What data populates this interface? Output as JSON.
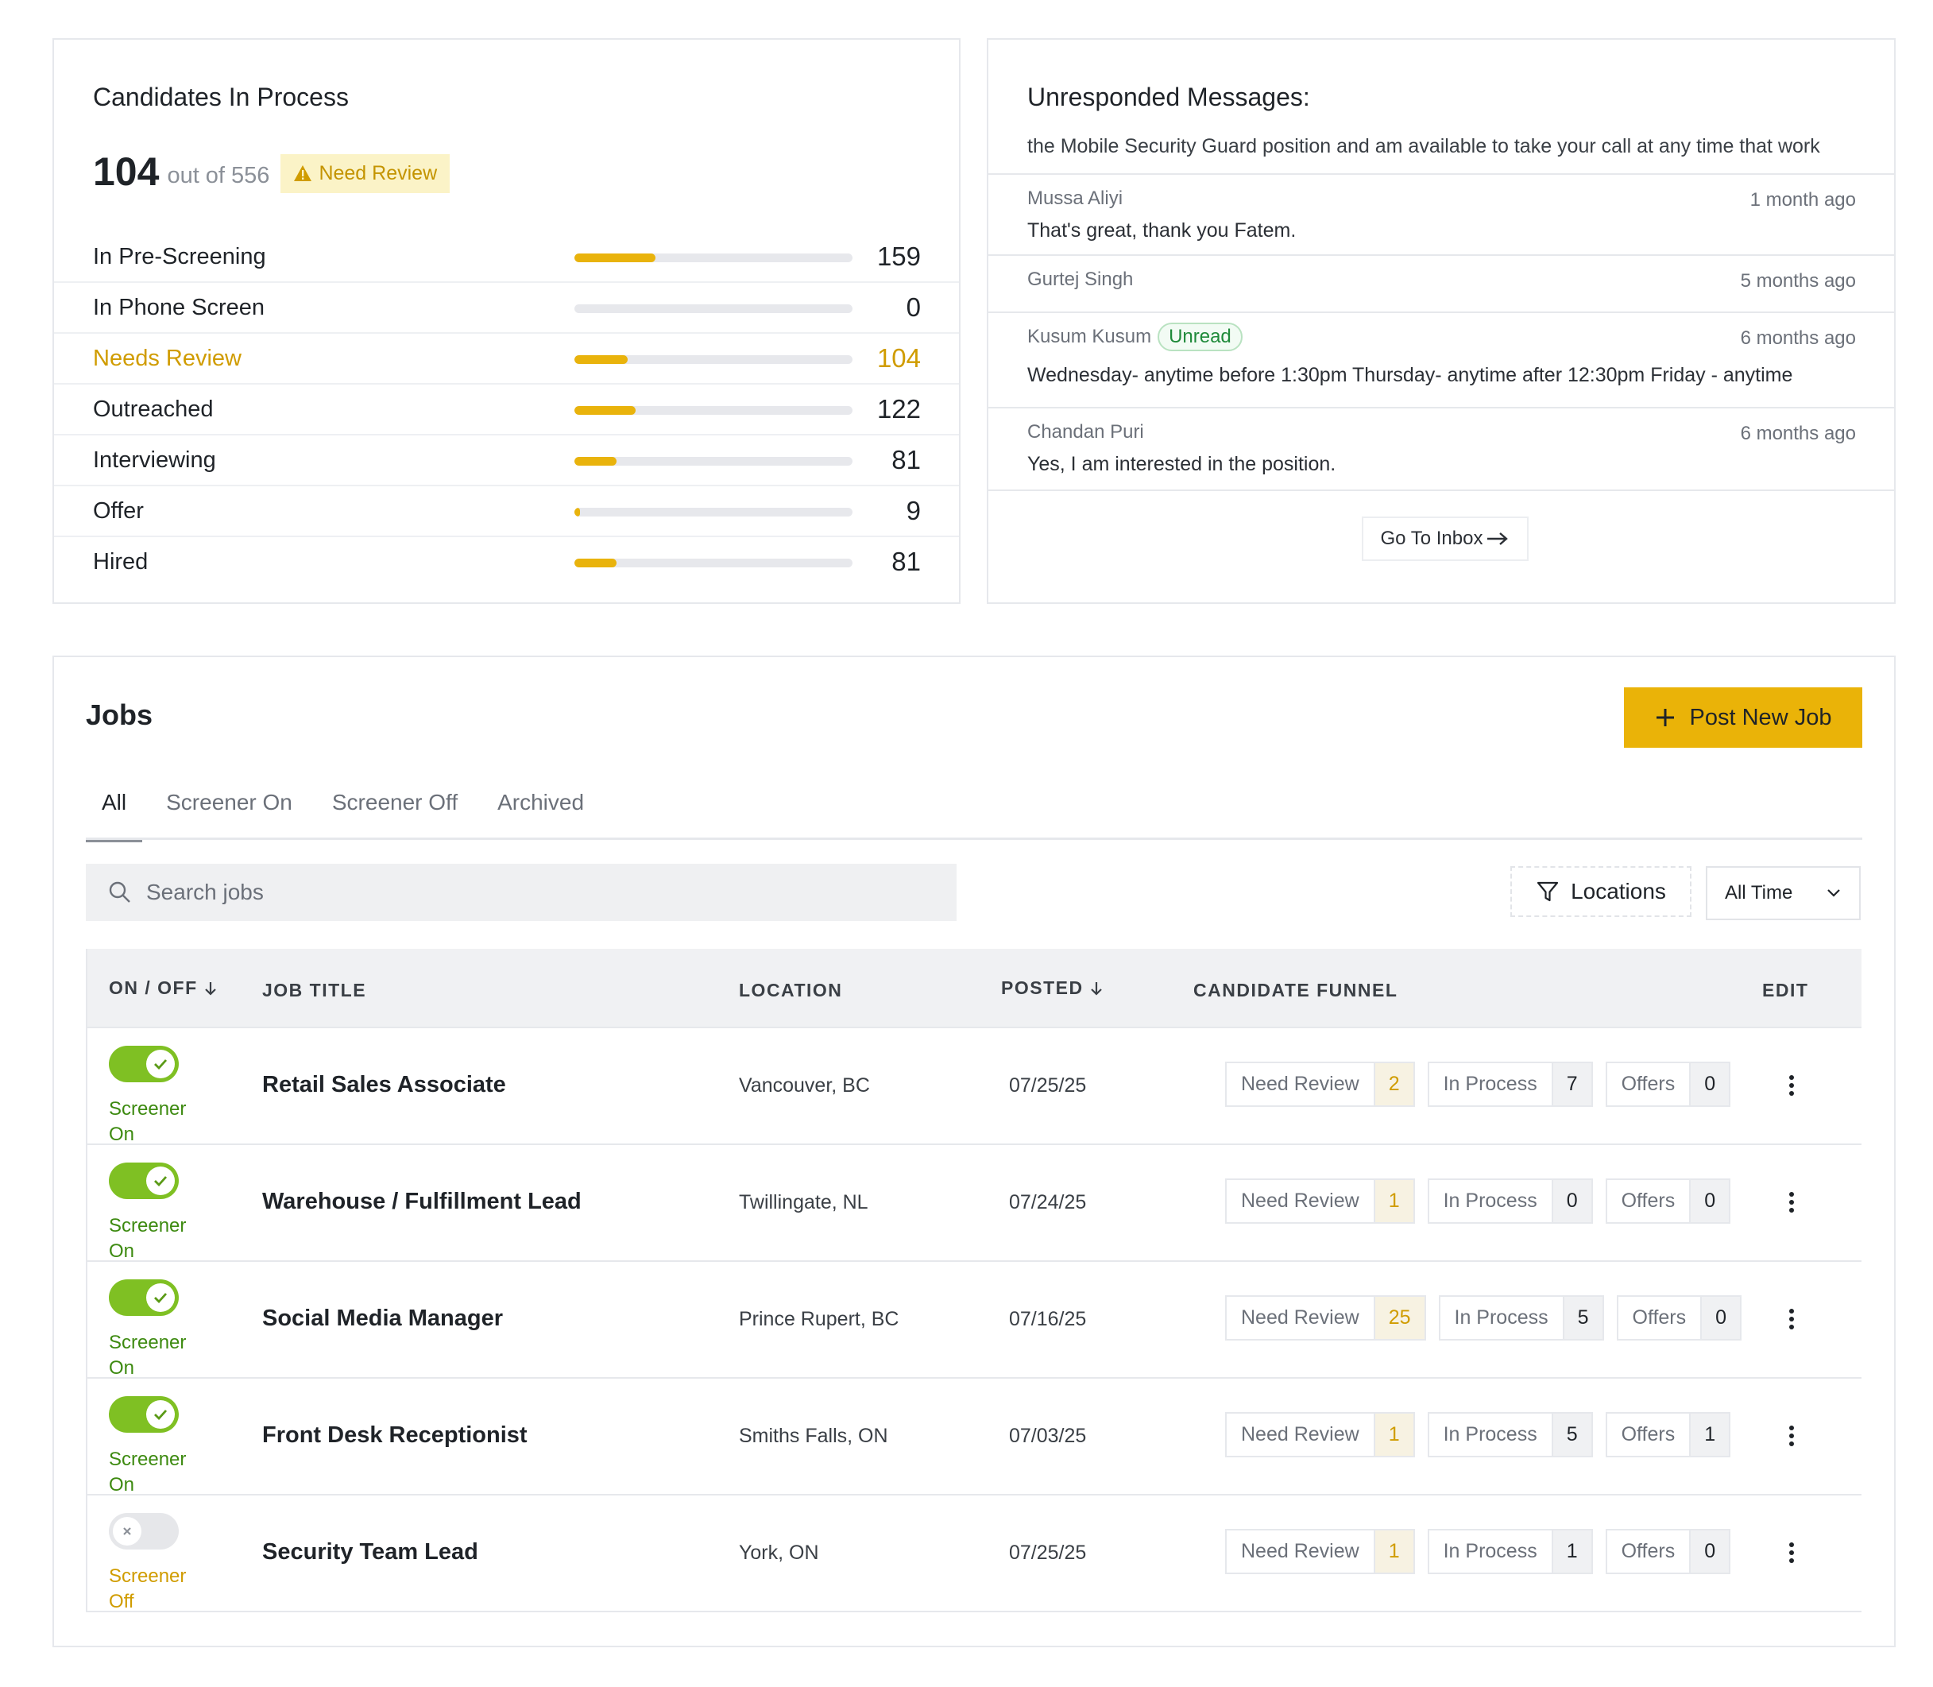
{
  "candidates": {
    "title": "Candidates In Process",
    "count": "104",
    "out_of": "out of 556",
    "badge": "Need Review",
    "stages": [
      {
        "label": "In Pre-Screening",
        "count": "159",
        "progress": 0.29,
        "highlight": false
      },
      {
        "label": "In Phone Screen",
        "count": "0",
        "progress": 0,
        "highlight": false
      },
      {
        "label": "Needs Review",
        "count": "104",
        "progress": 0.19,
        "highlight": true
      },
      {
        "label": "Outreached",
        "count": "122",
        "progress": 0.22,
        "highlight": false
      },
      {
        "label": "Interviewing",
        "count": "81",
        "progress": 0.15,
        "highlight": false
      },
      {
        "label": "Offer",
        "count": "9",
        "progress": 0.02,
        "highlight": false
      },
      {
        "label": "Hired",
        "count": "81",
        "progress": 0.15,
        "highlight": false
      }
    ]
  },
  "messages": {
    "title": "Unresponded Messages:",
    "snippet": "the Mobile Security Guard position and am available to take your call at any time that work",
    "items": [
      {
        "name": "Mussa Aliyi",
        "time": "1 month ago",
        "text": "That's great, thank you Fatem.",
        "unread": ""
      },
      {
        "name": "Gurtej Singh",
        "time": "5 months ago",
        "text": "",
        "unread": ""
      },
      {
        "name": "Kusum Kusum",
        "time": "6 months ago",
        "text": "Wednesday- anytime before 1:30pm Thursday- anytime after 12:30pm Friday - anytime",
        "unread": "Unread"
      },
      {
        "name": "Chandan Puri",
        "time": "6 months ago",
        "text": "Yes, I am interested in the position.",
        "unread": ""
      }
    ],
    "inbox_label": "Go To Inbox"
  },
  "jobs": {
    "title": "Jobs",
    "post_label": "Post New Job",
    "tabs": [
      {
        "label": "All",
        "active": true
      },
      {
        "label": "Screener On",
        "active": false
      },
      {
        "label": "Screener Off",
        "active": false
      },
      {
        "label": "Archived",
        "active": false
      }
    ],
    "search_placeholder": "Search jobs",
    "locations_label": "Locations",
    "time_filter": "All Time",
    "columns": {
      "toggle": "ON / OFF",
      "title": "JOB TITLE",
      "location": "LOCATION",
      "posted": "POSTED",
      "funnel": "CANDIDATE FUNNEL",
      "edit": "EDIT"
    },
    "funnel_labels": {
      "review": "Need Review",
      "process": "In Process",
      "offers": "Offers"
    },
    "rows": [
      {
        "on": true,
        "screener": "Screener On",
        "title": "Retail Sales Associate",
        "location": "Vancouver, BC",
        "posted": "07/25/25",
        "review": "2",
        "process": "7",
        "offers": "0"
      },
      {
        "on": true,
        "screener": "Screener On",
        "title": "Warehouse / Fulfillment Lead",
        "location": "Twillingate, NL",
        "posted": "07/24/25",
        "review": "1",
        "process": "0",
        "offers": "0"
      },
      {
        "on": true,
        "screener": "Screener On",
        "title": "Social Media Manager",
        "location": "Prince Rupert, BC",
        "posted": "07/16/25",
        "review": "25",
        "process": "5",
        "offers": "0"
      },
      {
        "on": true,
        "screener": "Screener On",
        "title": "Front Desk Receptionist",
        "location": "Smiths Falls, ON",
        "posted": "07/03/25",
        "review": "1",
        "process": "5",
        "offers": "1"
      },
      {
        "on": false,
        "screener": "Screener Off",
        "title": "Security Team Lead",
        "location": "York, ON",
        "posted": "07/25/25",
        "review": "1",
        "process": "1",
        "offers": "0"
      }
    ]
  },
  "colors": {
    "accent": "#eab308",
    "toggle_on": "#7fc023",
    "unread": "#1f8a3a"
  }
}
